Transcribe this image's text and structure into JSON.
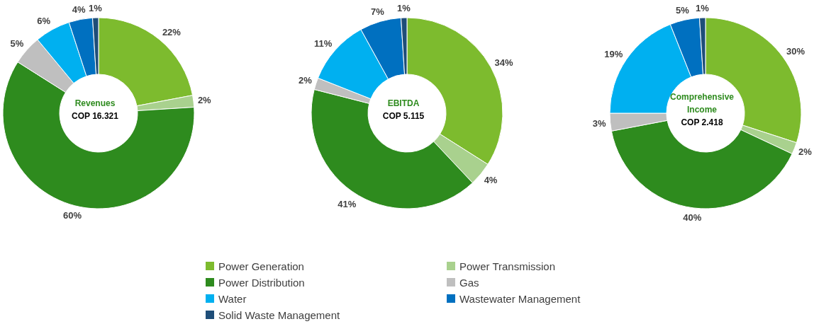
{
  "chart_data": [
    {
      "type": "donut",
      "title": "Revenues",
      "subtitle": "COP 16.321",
      "categories": [
        "Power Generation",
        "Power Transmission",
        "Power Distribution",
        "Gas",
        "Water",
        "Wastewater Management",
        "Solid Waste Management"
      ],
      "values": [
        22,
        2,
        60,
        5,
        6,
        4,
        1
      ],
      "value_labels": [
        "22%",
        "2%",
        "60%",
        "5%",
        "6%",
        "4%",
        "1%"
      ],
      "colors": [
        "#7dbb2e",
        "#a9d18e",
        "#2e8b1e",
        "#bfbfbf",
        "#00b0f0",
        "#0070c0",
        "#1f4e79"
      ],
      "legend": "bottom"
    },
    {
      "type": "donut",
      "title": "EBITDA",
      "subtitle": "COP 5.115",
      "values": [
        34,
        4,
        41,
        2,
        11,
        7,
        1
      ],
      "value_labels": [
        "34%",
        "4%",
        "41%",
        "2%",
        "11%",
        "7%",
        "1%"
      ],
      "colors": [
        "#7dbb2e",
        "#a9d18e",
        "#2e8b1e",
        "#bfbfbf",
        "#00b0f0",
        "#0070c0",
        "#1f4e79"
      ]
    },
    {
      "type": "donut",
      "title": "Comprehensive Income",
      "subtitle": "COP 2.418",
      "values": [
        30,
        2,
        40,
        3,
        19,
        5,
        1
      ],
      "value_labels": [
        "30%",
        "2%",
        "40%",
        "3%",
        "19%",
        "5%",
        "1%"
      ],
      "colors": [
        "#7dbb2e",
        "#a9d18e",
        "#2e8b1e",
        "#bfbfbf",
        "#00b0f0",
        "#0070c0",
        "#1f4e79"
      ]
    }
  ]
}
